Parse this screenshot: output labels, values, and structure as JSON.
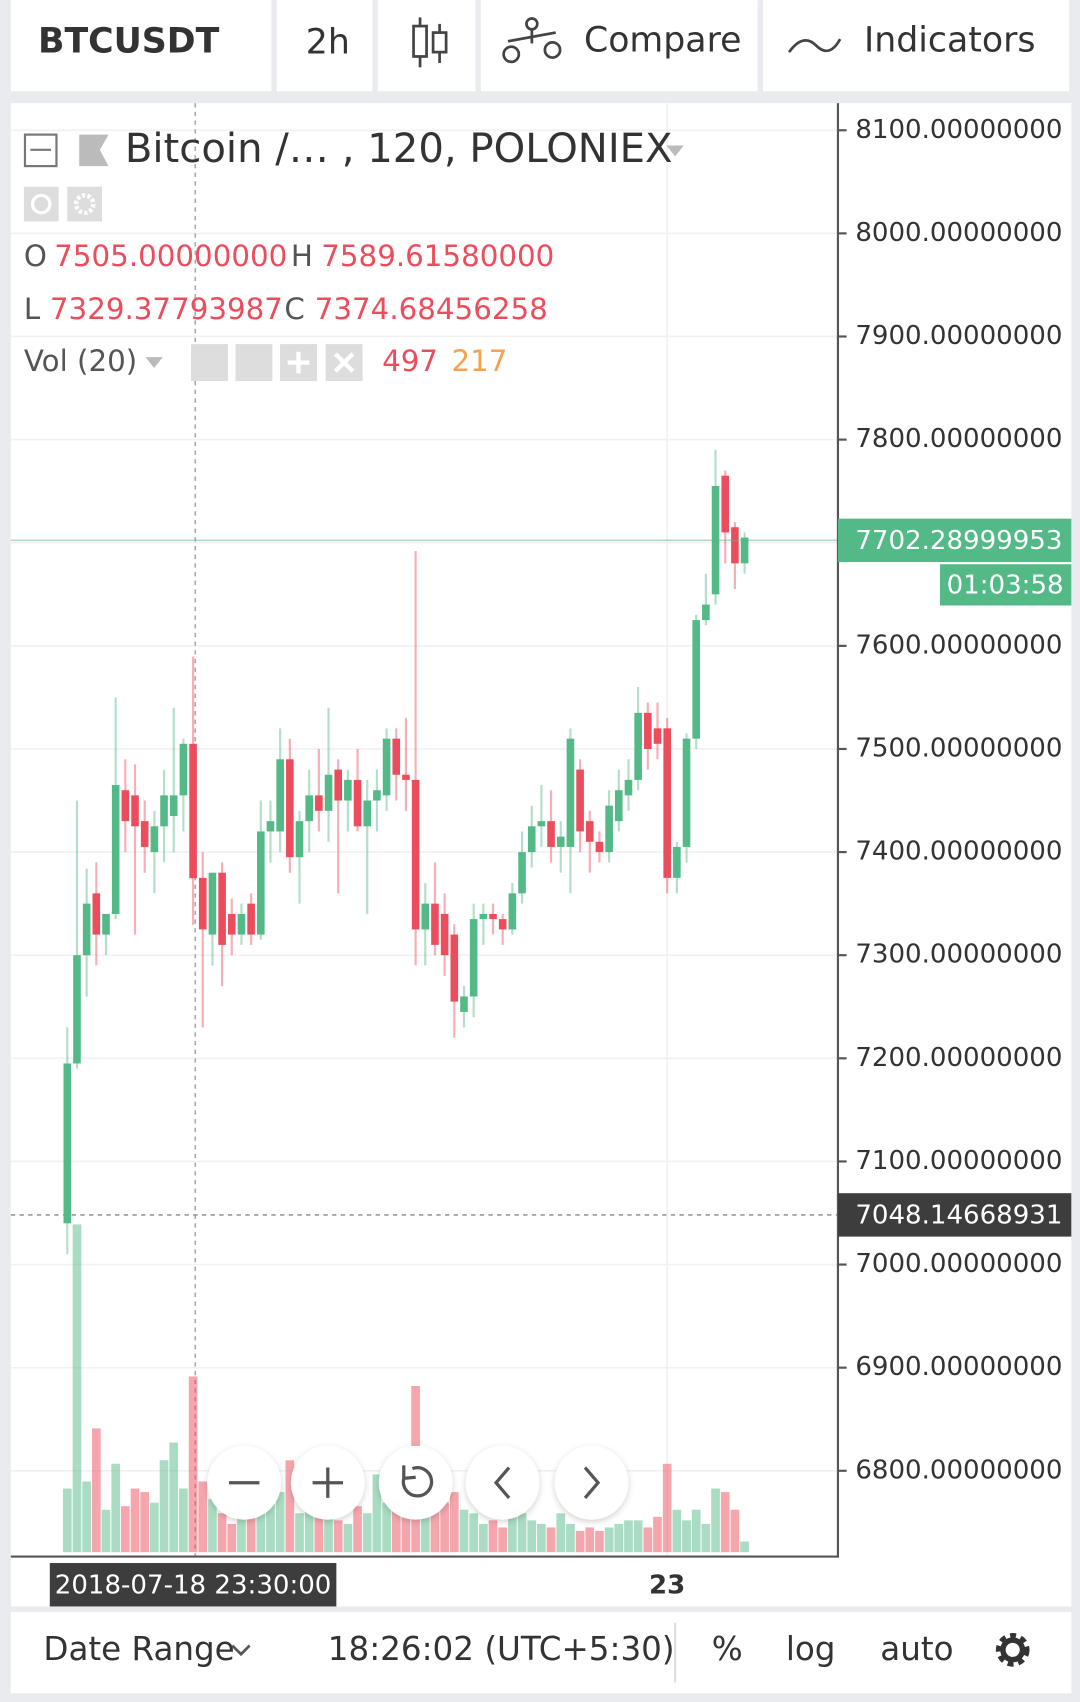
{
  "toolbar": {
    "symbol": "BTCUSDT",
    "interval": "2h",
    "compare": "Compare",
    "indicators": "Indicators"
  },
  "legend": {
    "title": "Bitcoin /… , 120, POLONIEX",
    "ohlc": [
      {
        "name": "O",
        "value": 7505,
        "label": "7505.00000000"
      },
      {
        "name": "H",
        "value": 7589.6158,
        "label": "7589.61580000"
      },
      {
        "name": "L",
        "value": 7329.37793987,
        "label": "7329.37793987"
      },
      {
        "name": "C",
        "value": 7374.68456258,
        "label": "7374.68456258"
      }
    ],
    "volume_name": "Vol (20)",
    "volume": 497,
    "volume_ma": 217
  },
  "chart_data": {
    "type": "candlestick",
    "up_color": "#53b987",
    "down_color": "#eb4d5c",
    "grid": true,
    "categories": [
      null,
      null,
      null,
      null,
      null,
      null,
      null,
      null,
      null,
      null,
      null,
      null,
      null,
      "2018-07-18 23:30:00",
      null,
      null,
      null,
      null,
      null,
      null,
      null,
      null,
      null,
      null,
      null,
      null,
      null,
      null,
      null,
      null,
      null,
      null,
      null,
      null,
      null,
      null,
      null,
      null,
      null,
      null,
      null,
      null,
      null,
      null,
      null,
      null,
      null,
      null,
      null,
      null,
      null,
      null,
      null,
      null,
      null,
      null,
      null,
      null,
      null,
      null,
      null,
      null,
      "23",
      null,
      null,
      null,
      null,
      null,
      null,
      null,
      null
    ],
    "open": [
      7040,
      7195,
      7300,
      7360,
      7320,
      7340,
      7460,
      7455,
      7430,
      7400,
      7425,
      7435,
      7455,
      7505,
      7375,
      7320,
      7380,
      7340,
      7320,
      7350,
      7320,
      7420,
      7420,
      7490,
      7395,
      7430,
      7455,
      7440,
      7480,
      7450,
      7470,
      7425,
      7450,
      7455,
      7510,
      7475,
      7470,
      7325,
      7350,
      7340,
      7320,
      7245,
      7260,
      7335,
      7340,
      7335,
      7325,
      7360,
      7400,
      7425,
      7430,
      7405,
      7405,
      7480,
      7430,
      7410,
      7400,
      7430,
      7455,
      7470,
      7535,
      7520,
      7520,
      7375,
      7405,
      7510,
      7625,
      7650,
      7765,
      7715,
      7680
    ],
    "high": [
      7230,
      7450,
      7384,
      7390,
      7340,
      7550,
      7490,
      7485,
      7450,
      7440,
      7480,
      7540,
      7510,
      7589.6158,
      7400,
      7370,
      7390,
      7355,
      7350,
      7360,
      7450,
      7450,
      7520,
      7510,
      7440,
      7480,
      7500,
      7540,
      7490,
      7480,
      7500,
      7470,
      7480,
      7520,
      7520,
      7530,
      7692,
      7370,
      7390,
      7360,
      7330,
      7270,
      7350,
      7350,
      7350,
      7340,
      7370,
      7420,
      7445,
      7465,
      7460,
      7430,
      7520,
      7490,
      7440,
      7420,
      7460,
      7480,
      7490,
      7560,
      7545,
      7545,
      7530,
      7410,
      7515,
      7630,
      7670,
      7790,
      7770,
      7720,
      7710
    ],
    "low": [
      7010,
      7190,
      7260,
      7290,
      7300,
      7335,
      7400,
      7320,
      7380,
      7360,
      7390,
      7400,
      7420,
      7329.37793987,
      7230,
      7290,
      7270,
      7300,
      7310,
      7310,
      7315,
      7390,
      7400,
      7380,
      7350,
      7400,
      7420,
      7410,
      7360,
      7420,
      7420,
      7340,
      7420,
      7440,
      7450,
      7440,
      7290,
      7290,
      7300,
      7280,
      7220,
      7230,
      7240,
      7310,
      7320,
      7310,
      7320,
      7350,
      7385,
      7405,
      7390,
      7380,
      7360,
      7400,
      7380,
      7390,
      7390,
      7420,
      7440,
      7460,
      7480,
      7490,
      7360,
      7360,
      7390,
      7500,
      7620,
      7640,
      7680,
      7655,
      7670
    ],
    "close": [
      7195,
      7300,
      7350,
      7320,
      7340,
      7465,
      7430,
      7425,
      7405,
      7425,
      7455,
      7455,
      7505,
      7374.68456258,
      7325,
      7380,
      7310,
      7320,
      7340,
      7320,
      7420,
      7430,
      7490,
      7395,
      7430,
      7455,
      7440,
      7475,
      7450,
      7470,
      7425,
      7450,
      7460,
      7510,
      7475,
      7470,
      7325,
      7350,
      7310,
      7300,
      7255,
      7260,
      7335,
      7340,
      7335,
      7325,
      7360,
      7400,
      7425,
      7430,
      7405,
      7415,
      7510,
      7420,
      7410,
      7400,
      7445,
      7460,
      7470,
      7535,
      7500,
      7505,
      7375,
      7405,
      7510,
      7625,
      7640,
      7755,
      7710,
      7680,
      7705
    ],
    "volume": [
      180,
      927,
      200,
      350,
      120,
      250,
      130,
      180,
      170,
      140,
      260,
      310,
      180,
      497,
      200,
      150,
      110,
      80,
      100,
      120,
      130,
      240,
      170,
      260,
      110,
      130,
      150,
      120,
      90,
      80,
      130,
      110,
      220,
      140,
      120,
      130,
      470,
      180,
      210,
      140,
      170,
      120,
      110,
      80,
      90,
      70,
      100,
      110,
      90,
      80,
      70,
      110,
      80,
      60,
      70,
      60,
      70,
      80,
      90,
      90,
      70,
      100,
      250,
      120,
      90,
      120,
      80,
      180,
      170,
      120,
      30
    ],
    "ylim": [
      6717.9,
      8126.3
    ],
    "yticks": [
      {
        "value": 6800,
        "label": "6800.00000000"
      },
      {
        "value": 6900,
        "label": "6900.00000000"
      },
      {
        "value": 7000,
        "label": "7000.00000000"
      },
      {
        "value": 7100,
        "label": "7100.00000000"
      },
      {
        "value": 7200,
        "label": "7200.00000000"
      },
      {
        "value": 7300,
        "label": "7300.00000000"
      },
      {
        "value": 7400,
        "label": "7400.00000000"
      },
      {
        "value": 7500,
        "label": "7500.00000000"
      },
      {
        "value": 7600,
        "label": "7600.00000000"
      },
      {
        "value": 7700,
        "label": "7700.00000000"
      },
      {
        "value": 7800,
        "label": "7800.00000000"
      },
      {
        "value": 7900,
        "label": "7900.00000000"
      },
      {
        "value": 8000,
        "label": "8000.00000000"
      },
      {
        "value": 8100,
        "label": "8100.00000000"
      }
    ],
    "last_price": 7702.28999953,
    "countdown": "01:03:58",
    "reference_price": 7048.14668931
  },
  "bottom_bar": {
    "date_range": "Date Range",
    "time": "18:26:02 (UTC+5:30)",
    "percent": "%",
    "log": "log",
    "auto": "auto"
  }
}
